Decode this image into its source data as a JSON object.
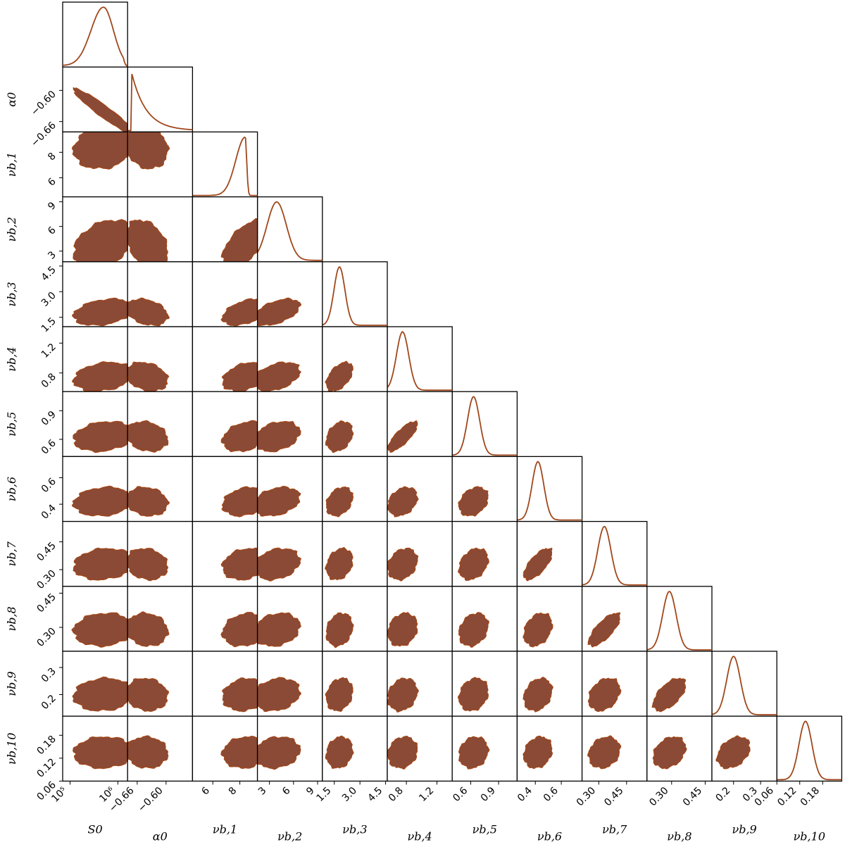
{
  "chart_data": {
    "type": "corner",
    "colors": {
      "line": "#a0471b",
      "fill_outer": "#f49a6c",
      "fill_mid": "#d17a55",
      "fill_inner": "#8a4a36",
      "frame": "#000000"
    },
    "params": [
      {
        "name": "S_0",
        "label": "S0",
        "scale": "log",
        "range": [
          70000,
          1600000
        ],
        "mean": 500000,
        "sd_log": 0.26,
        "tick_values": [
          100000,
          1000000
        ],
        "tick_labels": [
          "10⁵",
          "10⁶"
        ]
      },
      {
        "name": "alpha_0",
        "label": "α0",
        "scale": "linear",
        "range": [
          -0.68,
          -0.545
        ],
        "mean": -0.64,
        "sd": 0.018,
        "tick_values": [
          -0.66,
          -0.6
        ],
        "tick_labels": [
          "−0.66",
          "−0.60"
        ]
      },
      {
        "name": "nu_b1",
        "label": "νb,1",
        "scale": "linear",
        "range": [
          4.5,
          9.3
        ],
        "mean": 8.4,
        "sd": 0.7,
        "tick_values": [
          6,
          8
        ],
        "tick_labels": [
          "6",
          "8"
        ]
      },
      {
        "name": "nu_b2",
        "label": "νb,2",
        "scale": "linear",
        "range": [
          1.5,
          9.6
        ],
        "mean": 3.9,
        "sd": 1.2,
        "tick_values": [
          3,
          6,
          9
        ],
        "tick_labels": [
          "3",
          "6",
          "9"
        ]
      },
      {
        "name": "nu_b3",
        "label": "νb,3",
        "scale": "linear",
        "range": [
          0.8,
          4.6
        ],
        "mean": 1.8,
        "sd": 0.32,
        "tick_values": [
          1.5,
          3.0,
          4.5
        ],
        "tick_labels": [
          "1.5",
          "3.0",
          "4.5"
        ]
      },
      {
        "name": "nu_b4",
        "label": "νb,4",
        "scale": "linear",
        "range": [
          0.55,
          1.4
        ],
        "mean": 0.75,
        "sd": 0.08,
        "tick_values": [
          0.8,
          1.2
        ],
        "tick_labels": [
          "0.8",
          "1.2"
        ]
      },
      {
        "name": "nu_b5",
        "label": "νb,5",
        "scale": "linear",
        "range": [
          0.4,
          1.1
        ],
        "mean": 0.63,
        "sd": 0.065,
        "tick_values": [
          0.6,
          0.9
        ],
        "tick_labels": [
          "0.6",
          "0.9"
        ]
      },
      {
        "name": "nu_b6",
        "label": "νb,6",
        "scale": "linear",
        "range": [
          0.26,
          0.76
        ],
        "mean": 0.42,
        "sd": 0.045,
        "tick_values": [
          0.4,
          0.6
        ],
        "tick_labels": [
          "0.4",
          "0.6"
        ]
      },
      {
        "name": "nu_b7",
        "label": "νb,7",
        "scale": "linear",
        "range": [
          0.21,
          0.56
        ],
        "mean": 0.33,
        "sd": 0.035,
        "tick_values": [
          0.3,
          0.45
        ],
        "tick_labels": [
          "0.30",
          "0.45"
        ]
      },
      {
        "name": "nu_b8",
        "label": "νb,8",
        "scale": "linear",
        "range": [
          0.19,
          0.48
        ],
        "mean": 0.29,
        "sd": 0.03,
        "tick_values": [
          0.3,
          0.45
        ],
        "tick_labels": [
          "0.30",
          "0.45"
        ]
      },
      {
        "name": "nu_b9",
        "label": "νb,9",
        "scale": "linear",
        "range": [
          0.12,
          0.36
        ],
        "mean": 0.2,
        "sd": 0.025,
        "tick_values": [
          0.2,
          0.3
        ],
        "tick_labels": [
          "0.2",
          "0.3"
        ]
      },
      {
        "name": "nu_b10",
        "label": "νb,10",
        "scale": "linear",
        "range": [
          0.06,
          0.23
        ],
        "mean": 0.135,
        "sd": 0.017,
        "tick_values": [
          0.06,
          0.12,
          0.18
        ],
        "tick_labels": [
          "0.06",
          "0.12",
          "0.18"
        ]
      }
    ],
    "y_ticks": [
      null,
      {
        "tick_values": [
          -0.66,
          -0.6
        ],
        "tick_labels": [
          "−0.66",
          "−0.60"
        ],
        "range": [
          -0.68,
          -0.555
        ]
      },
      {
        "tick_values": [
          6,
          8
        ],
        "tick_labels": [
          "6",
          "8"
        ],
        "range": [
          4.5,
          9.6
        ]
      },
      {
        "tick_values": [
          3,
          6,
          9
        ],
        "tick_labels": [
          "3",
          "6",
          "9"
        ],
        "range": [
          1.7,
          9.6
        ]
      },
      {
        "tick_values": [
          1.5,
          3.0,
          4.5
        ],
        "tick_labels": [
          "1.5",
          "3.0",
          "4.5"
        ],
        "range": [
          0.95,
          4.75
        ]
      },
      {
        "tick_values": [
          0.8,
          1.2
        ],
        "tick_labels": [
          "0.8",
          "1.2"
        ],
        "range": [
          0.55,
          1.42
        ]
      },
      {
        "tick_values": [
          0.6,
          0.9
        ],
        "tick_labels": [
          "0.6",
          "0.9"
        ],
        "range": [
          0.42,
          1.1
        ]
      },
      {
        "tick_values": [
          0.4,
          0.6
        ],
        "tick_labels": [
          "0.4",
          "0.6"
        ],
        "range": [
          0.27,
          0.76
        ]
      },
      {
        "tick_values": [
          0.3,
          0.45
        ],
        "tick_labels": [
          "0.30",
          "0.45"
        ],
        "range": [
          0.21,
          0.56
        ]
      },
      {
        "tick_values": [
          0.3,
          0.45
        ],
        "tick_labels": [
          "0.30",
          "0.45"
        ],
        "range": [
          0.195,
          0.48
        ]
      },
      {
        "tick_values": [
          0.2,
          0.3
        ],
        "tick_labels": [
          "0.2",
          "0.3"
        ],
        "range": [
          0.12,
          0.36
        ]
      },
      {
        "tick_values": [
          0.06,
          0.12,
          0.18
        ],
        "tick_labels": [
          "0.06",
          "0.12",
          "0.18"
        ],
        "range": [
          0.06,
          0.23
        ]
      }
    ],
    "correlations": {
      "1-0": -0.95,
      "2-0": 0.15,
      "2-1": -0.15,
      "3-0": 0.35,
      "3-1": -0.35,
      "3-2": 0.6,
      "4-0": 0.3,
      "4-1": -0.3,
      "4-2": 0.45,
      "4-3": 0.5,
      "5-0": 0.25,
      "5-1": -0.25,
      "5-2": 0.35,
      "5-3": 0.4,
      "5-4": 0.5,
      "6-0": 0.2,
      "6-1": -0.2,
      "6-2": 0.3,
      "6-3": 0.3,
      "6-4": 0.3,
      "6-5": 0.8,
      "7-0": 0.15,
      "7-1": -0.15,
      "7-2": 0.25,
      "7-3": 0.3,
      "7-4": 0.3,
      "7-5": 0.3,
      "7-6": 0.3,
      "8-0": 0.15,
      "8-1": -0.15,
      "8-2": 0.2,
      "8-3": 0.25,
      "8-4": 0.25,
      "8-5": 0.25,
      "8-6": 0.3,
      "8-7": 0.7,
      "9-0": 0.1,
      "9-1": -0.1,
      "9-2": 0.2,
      "9-3": 0.2,
      "9-4": 0.2,
      "9-5": 0.2,
      "9-6": 0.25,
      "9-7": 0.3,
      "9-8": 0.75,
      "10-0": 0.1,
      "10-1": -0.1,
      "10-2": 0.15,
      "10-3": 0.2,
      "10-4": 0.2,
      "10-5": 0.2,
      "10-6": 0.2,
      "10-7": 0.25,
      "10-8": 0.3,
      "10-9": 0.6,
      "11-0": 0.05,
      "11-1": -0.05,
      "11-2": 0.1,
      "11-3": 0.15,
      "11-4": 0.15,
      "11-5": 0.15,
      "11-6": 0.15,
      "11-7": 0.2,
      "11-8": 0.2,
      "11-9": 0.3,
      "11-10": 0.35
    },
    "contour_levels_sigma": [
      0.8,
      1.6,
      2.4
    ]
  }
}
